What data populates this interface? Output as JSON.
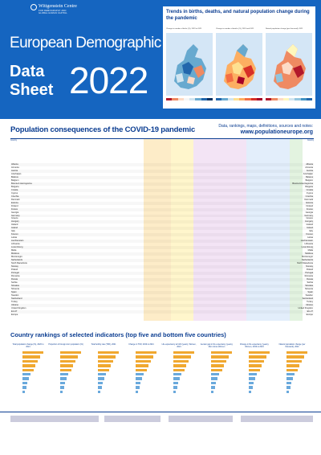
{
  "logo": {
    "name": "Wittgenstein Centre",
    "sub1": "FOR DEMOGRAPHY AND",
    "sub2": "GLOBAL HUMAN CAPITAL"
  },
  "title": {
    "line1": "European Demographic",
    "data": "Data",
    "sheet": "Sheet",
    "year": "2022"
  },
  "maps": {
    "heading": "Trends in births, deaths, and natural population change during the pandemic",
    "captions": [
      "Change in number of births (%), 2019 to 2021",
      "Change in number of deaths (%), 2019 and 2021",
      "Natural population change (per thousand), 2021"
    ],
    "legend_colors": [
      [
        "#b2182b",
        "#ef8a62",
        "#fddbc7",
        "#f7f7f7",
        "#d1e5f0",
        "#67a9cf",
        "#2166ac",
        "#053061"
      ],
      [
        "#2166ac",
        "#67a9cf",
        "#d1e5f0",
        "#fee090",
        "#fdae61",
        "#f46d43",
        "#d73027",
        "#a50026"
      ],
      [
        "#b2182b",
        "#ef8a62",
        "#fddbc7",
        "#fff7bc",
        "#d1e5f0",
        "#92c5de",
        "#4393c3",
        "#2166ac"
      ]
    ]
  },
  "covid": {
    "title": "Population consequences of the COVID-19 pandemic",
    "subtitle": "Data, rankings, maps, definitions, sources and notes:",
    "url": "www.populationeurope.org",
    "col_country": "Country",
    "countries": [
      "Albania",
      "Armenia",
      "Austria",
      "Azerbaijan",
      "Belarus",
      "Belgium",
      "Bosnia & Herzegovina",
      "Bulgaria",
      "Croatia",
      "Cyprus",
      "Czechia",
      "Denmark",
      "Estonia",
      "Finland",
      "France",
      "Georgia",
      "Germany",
      "Greece",
      "Hungary",
      "Iceland",
      "Ireland",
      "Italy",
      "Kosovo",
      "Latvia",
      "Liechtenstein",
      "Lithuania",
      "Luxembourg",
      "Malta",
      "Moldova",
      "Montenegro",
      "Netherlands",
      "North Macedonia",
      "Norway",
      "Poland",
      "Portugal",
      "Romania",
      "Russia",
      "Serbia",
      "Slovakia",
      "Slovenia",
      "Spain",
      "Sweden",
      "Switzerland",
      "Turkey",
      "Ukraine",
      "United Kingdom",
      "EU-27",
      "Europe"
    ]
  },
  "rankings": {
    "title": "Country rankings of selected indicators (top five and bottom five countries)",
    "panels": [
      "Total population change (%), 2020 to 2021",
      "Proportion of foreign-born population (%)",
      "Total fertility rate (TFR), 2021",
      "Change in TFR, 2019 to 2021",
      "Life expectancy at birth (years), Women, 2021",
      "Gender gap in life expectancy (years), Men minus Women",
      "Change in life expectancy (years), Women, 2019 to 2021",
      "Natural population change (per thousand), 2021"
    ]
  }
}
